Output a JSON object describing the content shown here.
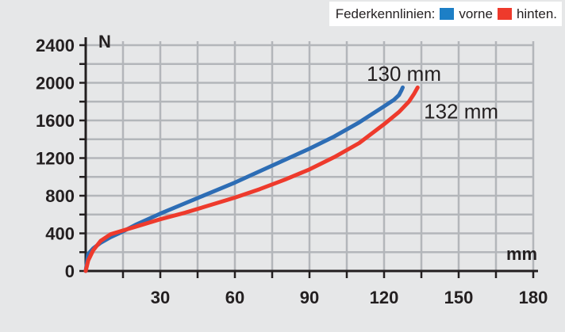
{
  "legend": {
    "title": "Federkennlinien:",
    "items": [
      {
        "label": "vorne",
        "color": "#1d7fc6"
      },
      {
        "label": "hinten.",
        "color": "#ee3a2c"
      }
    ]
  },
  "chart_data": {
    "type": "line",
    "xlim": [
      0,
      180
    ],
    "ylim": [
      0,
      2400
    ],
    "x_ticks": [
      30,
      60,
      90,
      120,
      150,
      180
    ],
    "y_ticks": [
      0,
      400,
      800,
      1200,
      1600,
      2000,
      2400
    ],
    "xlabel": "mm",
    "ylabel": "N",
    "grid": true,
    "series": [
      {
        "name": "vorne",
        "color": "#2d6db5",
        "x": [
          0,
          1,
          3,
          6,
          10,
          15,
          20,
          30,
          40,
          50,
          60,
          70,
          80,
          90,
          100,
          110,
          120,
          124,
          126,
          127,
          127.5
        ],
        "y": [
          0,
          180,
          240,
          300,
          360,
          420,
          490,
          610,
          720,
          830,
          940,
          1060,
          1180,
          1300,
          1430,
          1580,
          1750,
          1820,
          1870,
          1920,
          1950
        ]
      },
      {
        "name": "hinten.",
        "color": "#ee3a2c",
        "x": [
          0,
          1,
          3,
          6,
          10,
          15,
          20,
          30,
          40,
          50,
          60,
          70,
          80,
          90,
          100,
          110,
          120,
          126,
          130,
          132,
          133.5
        ],
        "y": [
          0,
          110,
          220,
          320,
          390,
          430,
          470,
          550,
          620,
          700,
          780,
          870,
          970,
          1080,
          1210,
          1360,
          1560,
          1690,
          1800,
          1880,
          1950
        ]
      }
    ],
    "annotations": [
      {
        "text": "130 mm",
        "x": 113,
        "y": 2020
      },
      {
        "text": "132 mm",
        "x": 136,
        "y": 1620
      }
    ]
  }
}
